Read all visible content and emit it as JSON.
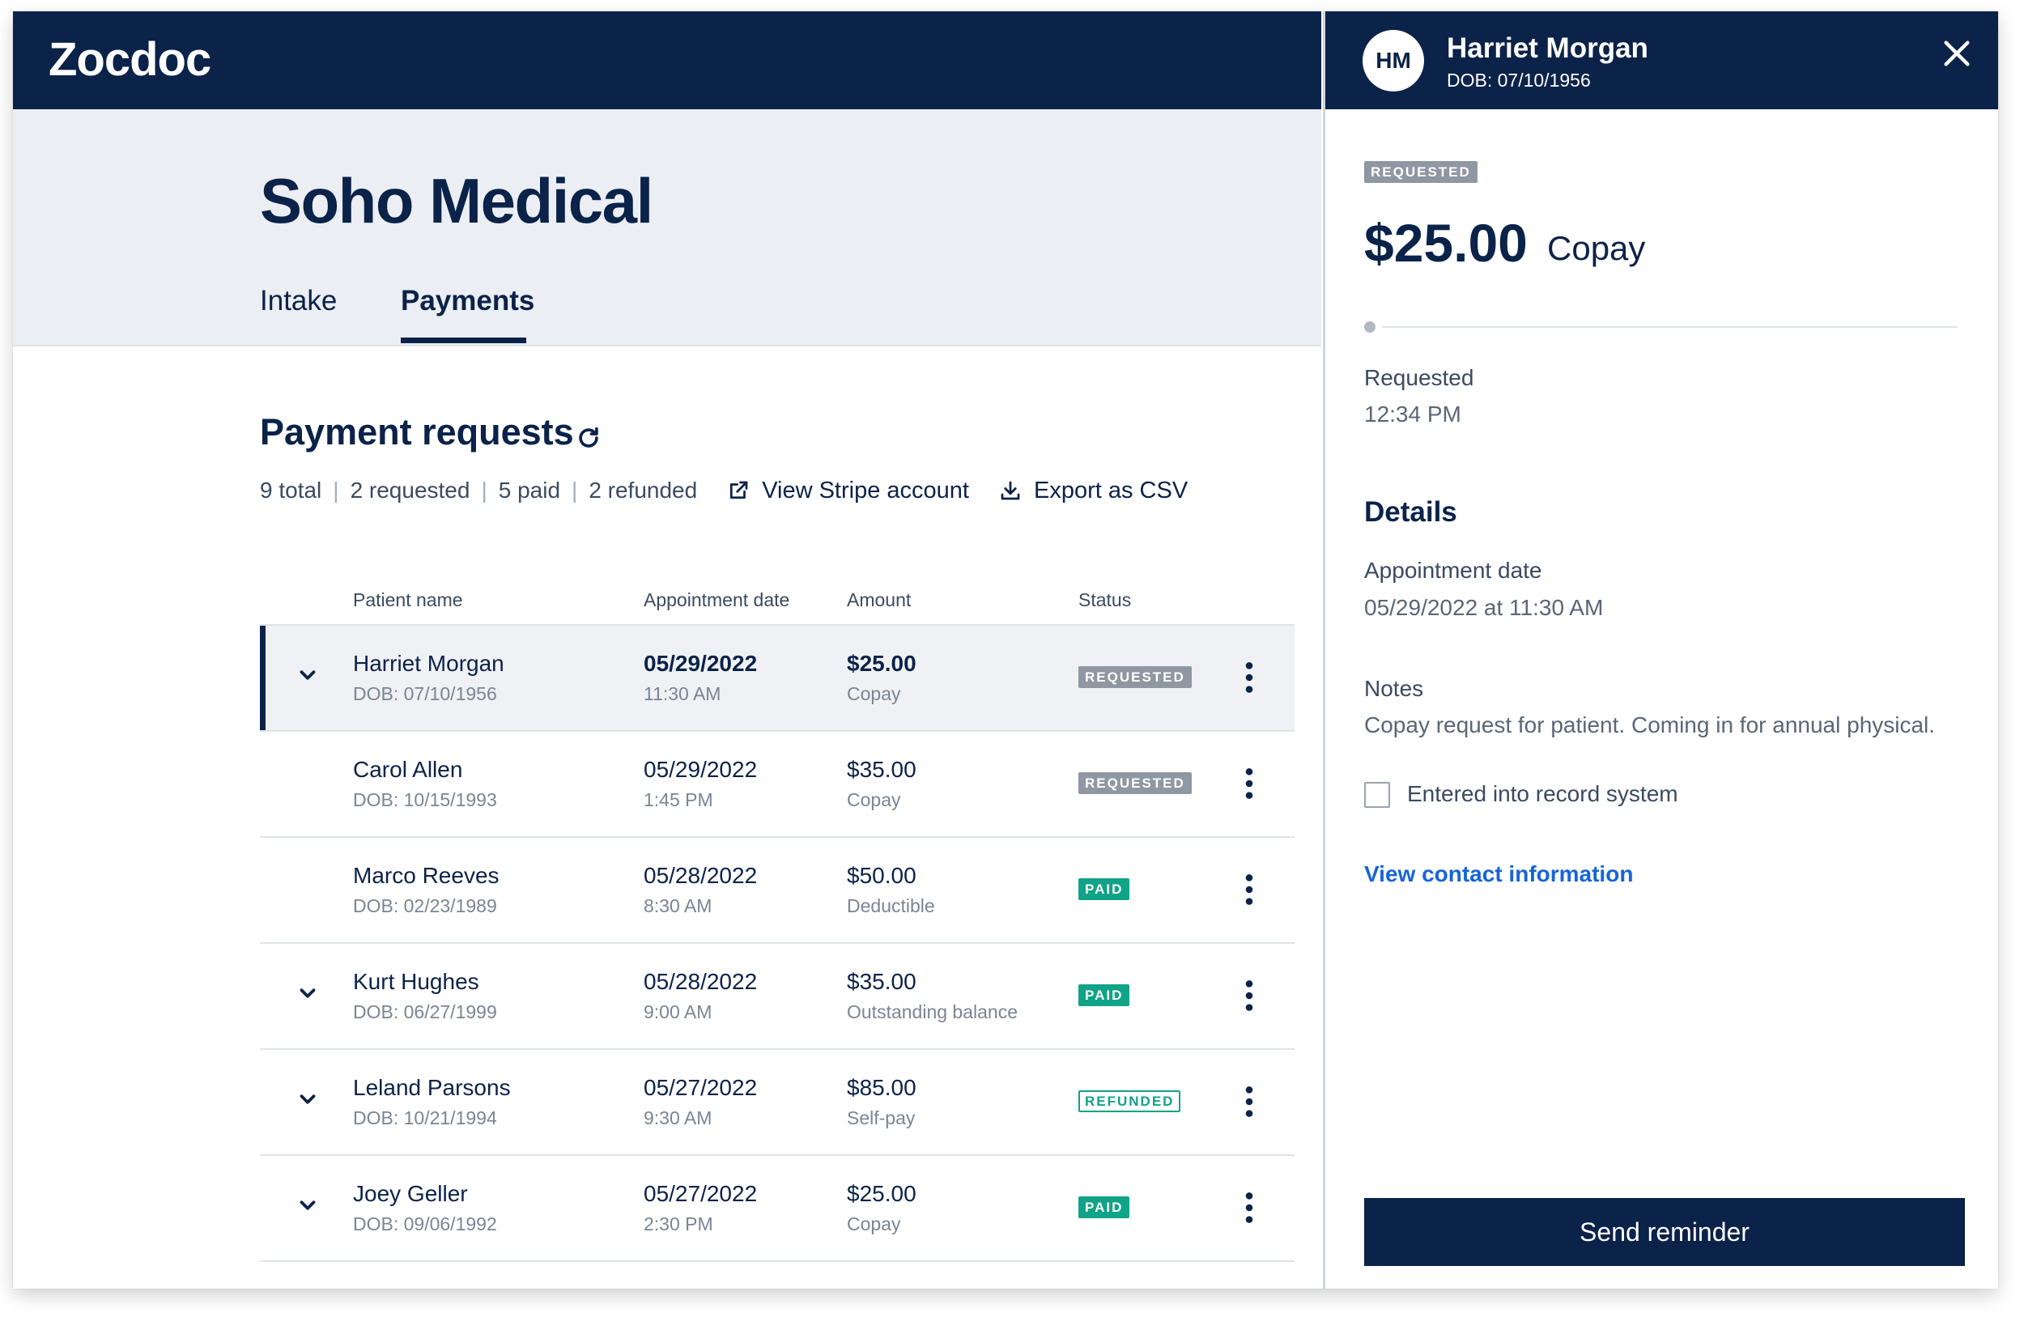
{
  "app": {
    "logo": "Zocdoc"
  },
  "practice": {
    "name": "Soho Medical"
  },
  "tabs": [
    {
      "label": "Intake",
      "active": false
    },
    {
      "label": "Payments",
      "active": true
    }
  ],
  "payments": {
    "title": "Payment requests",
    "summary": {
      "total": "9 total",
      "requested": "2 requested",
      "paid": "5 paid",
      "refunded": "2 refunded",
      "separator": "|"
    },
    "links": {
      "stripe": "View Stripe account",
      "export": "Export as CSV"
    },
    "columns": {
      "name": "Patient name",
      "date": "Appointment date",
      "amount": "Amount",
      "status": "Status"
    },
    "rows": [
      {
        "name": "Harriet Morgan",
        "dob": "DOB: 07/10/1956",
        "date": "05/29/2022",
        "time": "11:30 AM",
        "amount": "$25.00",
        "type": "Copay",
        "status": "REQUESTED"
      },
      {
        "name": "Carol Allen",
        "dob": "DOB: 10/15/1993",
        "date": "05/29/2022",
        "time": "1:45 PM",
        "amount": "$35.00",
        "type": "Copay",
        "status": "REQUESTED"
      },
      {
        "name": "Marco Reeves",
        "dob": "DOB: 02/23/1989",
        "date": "05/28/2022",
        "time": "8:30 AM",
        "amount": "$50.00",
        "type": "Deductible",
        "status": "PAID"
      },
      {
        "name": "Kurt Hughes",
        "dob": "DOB: 06/27/1999",
        "date": "05/28/2022",
        "time": "9:00 AM",
        "amount": "$35.00",
        "type": "Outstanding balance",
        "status": "PAID"
      },
      {
        "name": "Leland Parsons",
        "dob": "DOB: 10/21/1994",
        "date": "05/27/2022",
        "time": "9:30 AM",
        "amount": "$85.00",
        "type": "Self-pay",
        "status": "REFUNDED"
      },
      {
        "name": "Joey Geller",
        "dob": "DOB: 09/06/1992",
        "date": "05/27/2022",
        "time": "2:30 PM",
        "amount": "$25.00",
        "type": "Copay",
        "status": "PAID"
      }
    ]
  },
  "panel": {
    "initials": "HM",
    "name": "Harriet Morgan",
    "dob": "DOB: 07/10/1956",
    "status": "REQUESTED",
    "amount": "$25.00",
    "amount_type": "Copay",
    "timeline": {
      "label": "Requested",
      "time": "12:34 PM"
    },
    "details_heading": "Details",
    "appointment_label": "Appointment date",
    "appointment_value": "05/29/2022 at 11:30 AM",
    "notes_label": "Notes",
    "notes_value": "Copay request for patient. Coming in for annual physical.",
    "checkbox_label": "Entered into record system",
    "contact_link": "View contact information",
    "reminder_button": "Send reminder"
  },
  "colors": {
    "navy": "#0b2249",
    "paid_green": "#10a387",
    "requested_gray": "#8f97a2",
    "link_blue": "#1664d9"
  }
}
